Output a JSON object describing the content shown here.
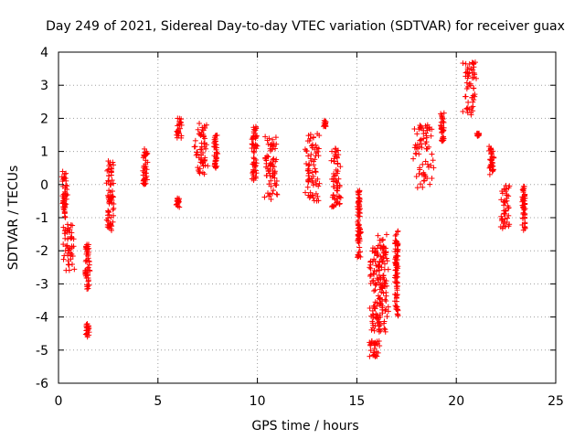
{
  "chart_data": {
    "type": "scatter",
    "title": "Day 249 of 2021, Sidereal Day-to-day VTEC variation (SDTVAR) for receiver guax",
    "xlabel": "GPS time / hours",
    "ylabel": "SDTVAR / TECUs",
    "xlim": [
      0,
      25
    ],
    "ylim": [
      -6,
      4
    ],
    "xticks": [
      "0",
      "5",
      "10",
      "15",
      "20",
      "25"
    ],
    "yticks": [
      "4",
      "3",
      "2",
      "1",
      "0",
      "-1",
      "-2",
      "-3",
      "-4",
      "-5",
      "-6"
    ],
    "grid": true,
    "marker": "+",
    "color": "#ff0000",
    "series": [
      {
        "name": "SDTVAR",
        "clusters": [
          {
            "x": [
              0.15,
              0.45
            ],
            "y": [
              -1.0,
              0.4
            ]
          },
          {
            "x": [
              0.2,
              0.85
            ],
            "y": [
              -2.6,
              -1.2
            ]
          },
          {
            "x": [
              1.3,
              1.6
            ],
            "y": [
              -3.2,
              -1.8
            ]
          },
          {
            "x": [
              1.35,
              1.55
            ],
            "y": [
              -4.6,
              -4.2
            ]
          },
          {
            "x": [
              2.4,
              2.8
            ],
            "y": [
              -1.4,
              0.75
            ]
          },
          {
            "x": [
              4.2,
              4.5
            ],
            "y": [
              0.0,
              1.1
            ]
          },
          {
            "x": [
              5.9,
              6.2
            ],
            "y": [
              1.4,
              2.0
            ]
          },
          {
            "x": [
              5.9,
              6.1
            ],
            "y": [
              -0.7,
              -0.4
            ]
          },
          {
            "x": [
              6.8,
              7.6
            ],
            "y": [
              0.3,
              1.9
            ]
          },
          {
            "x": [
              7.8,
              8.0
            ],
            "y": [
              0.5,
              1.6
            ]
          },
          {
            "x": [
              9.7,
              10.0
            ],
            "y": [
              0.1,
              1.8
            ]
          },
          {
            "x": [
              10.3,
              11.1
            ],
            "y": [
              -0.45,
              1.5
            ]
          },
          {
            "x": [
              12.3,
              13.2
            ],
            "y": [
              -0.5,
              1.6
            ]
          },
          {
            "x": [
              13.3,
              13.5
            ],
            "y": [
              1.75,
              1.95
            ]
          },
          {
            "x": [
              13.7,
              14.2
            ],
            "y": [
              -0.7,
              1.1
            ]
          },
          {
            "x": [
              15.0,
              15.2
            ],
            "y": [
              -2.2,
              0.0
            ]
          },
          {
            "x": [
              15.6,
              16.2
            ],
            "y": [
              -5.2,
              -1.9
            ]
          },
          {
            "x": [
              16.0,
              16.6
            ],
            "y": [
              -4.5,
              -1.5
            ]
          },
          {
            "x": [
              16.9,
              17.1
            ],
            "y": [
              -4.0,
              -1.4
            ]
          },
          {
            "x": [
              17.8,
              18.9
            ],
            "y": [
              -0.1,
              1.8
            ]
          },
          {
            "x": [
              19.2,
              19.4
            ],
            "y": [
              1.3,
              2.2
            ]
          },
          {
            "x": [
              20.3,
              21.1
            ],
            "y": [
              2.1,
              3.7
            ]
          },
          {
            "x": [
              21.0,
              21.2
            ],
            "y": [
              1.45,
              1.55
            ]
          },
          {
            "x": [
              21.6,
              21.9
            ],
            "y": [
              0.3,
              1.2
            ]
          },
          {
            "x": [
              22.2,
              22.7
            ],
            "y": [
              -1.4,
              0.0
            ]
          },
          {
            "x": [
              23.3,
              23.5
            ],
            "y": [
              -1.4,
              0.0
            ]
          }
        ]
      }
    ]
  }
}
